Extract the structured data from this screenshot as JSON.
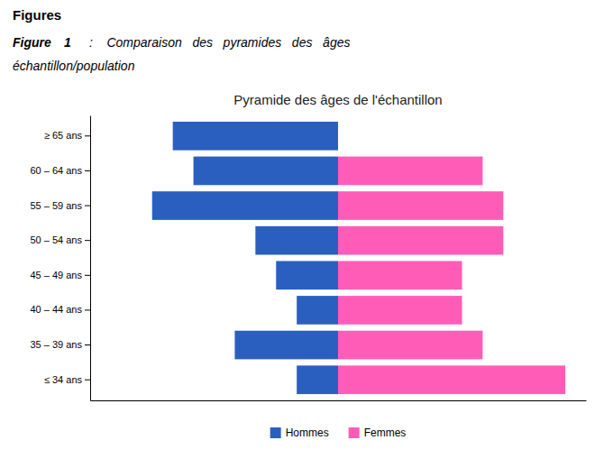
{
  "chart_data": {
    "type": "bar",
    "orientation": "horizontal",
    "title": "Pyramide des âges de l'échantillon",
    "annotations": [
      "Figures",
      "Figure",
      "1",
      ":    Comparaison   des   pyramides   des   âges",
      "échantillon/population"
    ],
    "categories": [
      "≤ 34 ans",
      "35 – 39 ans",
      "40 – 44 ans",
      "45 – 49 ans",
      "50 – 54 ans",
      "55 – 59 ans",
      "60 – 64 ans",
      "≥ 65 ans"
    ],
    "series": [
      {
        "name": "Hommes",
        "color": "#2B5FBF",
        "values": [
          -2,
          -5,
          -2,
          -3,
          -4,
          -9,
          -7,
          -8
        ]
      },
      {
        "name": "Femmes",
        "color": "#FF5CB8",
        "values": [
          11,
          7,
          6,
          6,
          8,
          8,
          7,
          0
        ]
      }
    ],
    "xlim": [
      -12,
      12
    ],
    "grid": false,
    "legend": "bottom",
    "tick_labels": "y"
  }
}
